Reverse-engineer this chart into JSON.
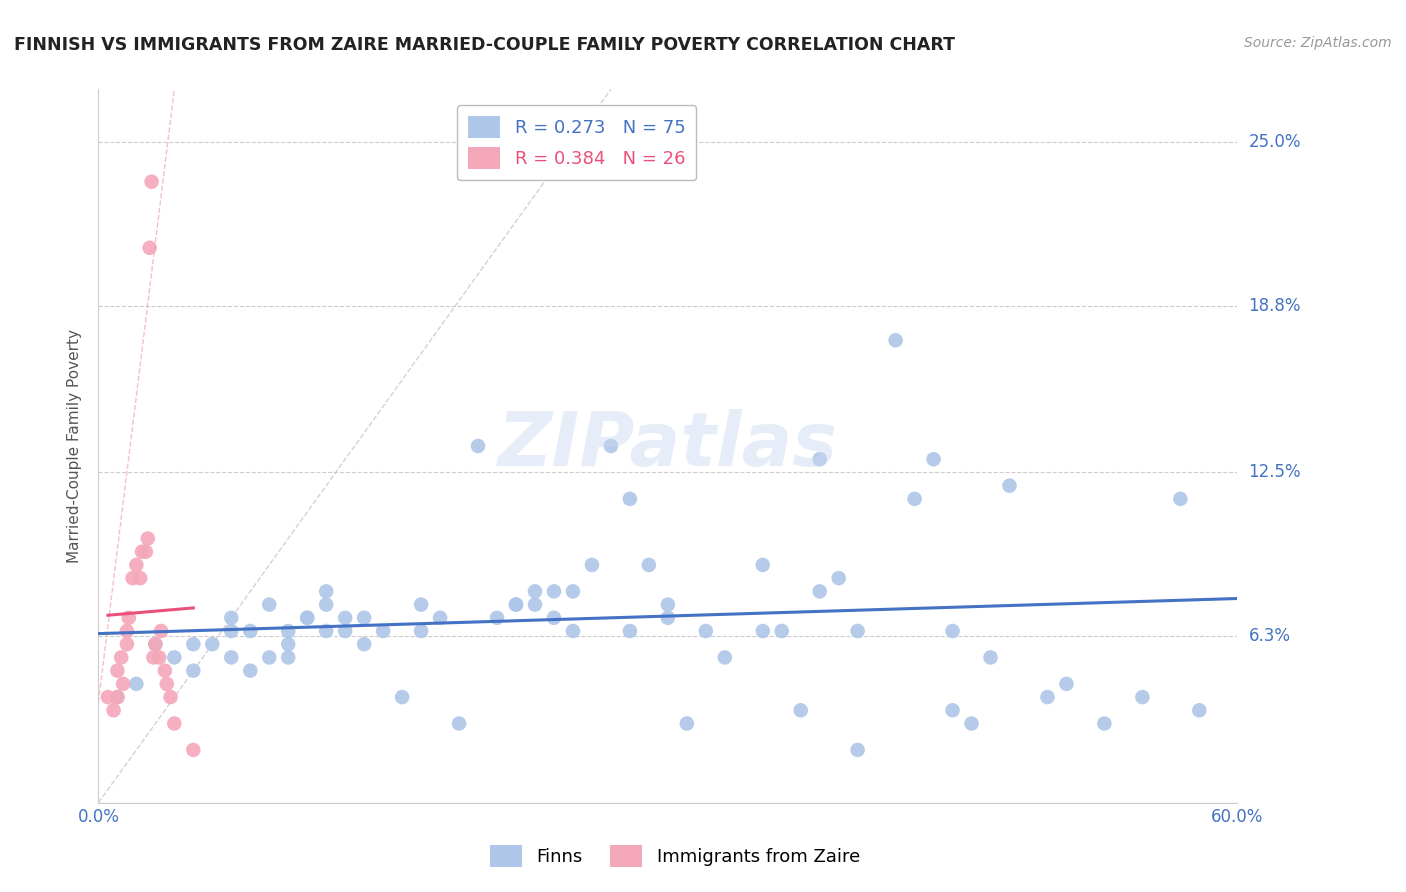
{
  "title": "FINNISH VS IMMIGRANTS FROM ZAIRE MARRIED-COUPLE FAMILY POVERTY CORRELATION CHART",
  "source": "Source: ZipAtlas.com",
  "ylabel": "Married-Couple Family Poverty",
  "xlim": [
    0.0,
    0.6
  ],
  "ylim": [
    0.0,
    0.27
  ],
  "xticks": [
    0.0,
    0.1,
    0.2,
    0.3,
    0.4,
    0.5,
    0.6
  ],
  "xticklabels": [
    "0.0%",
    "",
    "",
    "",
    "",
    "",
    "60.0%"
  ],
  "ytick_positions": [
    0.0,
    0.063,
    0.125,
    0.188,
    0.25
  ],
  "ytick_labels": [
    "",
    "6.3%",
    "12.5%",
    "18.8%",
    "25.0%"
  ],
  "legend_r1": "R = 0.273",
  "legend_n1": "N = 75",
  "legend_r2": "R = 0.384",
  "legend_n2": "N = 26",
  "color_finns": "#aec6e8",
  "color_zaire": "#f4a7b9",
  "color_line_finns": "#4472c4",
  "color_line_zaire": "#e8527a",
  "watermark": "ZIPatlas",
  "finns_x": [
    0.01,
    0.02,
    0.03,
    0.04,
    0.05,
    0.05,
    0.06,
    0.07,
    0.07,
    0.07,
    0.08,
    0.08,
    0.09,
    0.09,
    0.1,
    0.1,
    0.1,
    0.11,
    0.11,
    0.12,
    0.12,
    0.12,
    0.13,
    0.13,
    0.14,
    0.14,
    0.15,
    0.16,
    0.17,
    0.17,
    0.18,
    0.19,
    0.2,
    0.21,
    0.22,
    0.22,
    0.23,
    0.23,
    0.24,
    0.24,
    0.25,
    0.25,
    0.26,
    0.27,
    0.28,
    0.28,
    0.29,
    0.3,
    0.3,
    0.31,
    0.32,
    0.33,
    0.35,
    0.35,
    0.36,
    0.37,
    0.38,
    0.38,
    0.39,
    0.4,
    0.4,
    0.42,
    0.43,
    0.44,
    0.45,
    0.45,
    0.46,
    0.47,
    0.48,
    0.5,
    0.51,
    0.53,
    0.55,
    0.57,
    0.58
  ],
  "finns_y": [
    0.04,
    0.045,
    0.06,
    0.055,
    0.05,
    0.06,
    0.06,
    0.055,
    0.065,
    0.07,
    0.05,
    0.065,
    0.055,
    0.075,
    0.055,
    0.06,
    0.065,
    0.07,
    0.07,
    0.065,
    0.075,
    0.08,
    0.065,
    0.07,
    0.06,
    0.07,
    0.065,
    0.04,
    0.065,
    0.075,
    0.07,
    0.03,
    0.135,
    0.07,
    0.075,
    0.075,
    0.075,
    0.08,
    0.07,
    0.08,
    0.065,
    0.08,
    0.09,
    0.135,
    0.065,
    0.115,
    0.09,
    0.07,
    0.075,
    0.03,
    0.065,
    0.055,
    0.065,
    0.09,
    0.065,
    0.035,
    0.08,
    0.13,
    0.085,
    0.02,
    0.065,
    0.175,
    0.115,
    0.13,
    0.065,
    0.035,
    0.03,
    0.055,
    0.12,
    0.04,
    0.045,
    0.03,
    0.04,
    0.115,
    0.035
  ],
  "zaire_x": [
    0.005,
    0.008,
    0.01,
    0.01,
    0.012,
    0.013,
    0.015,
    0.015,
    0.016,
    0.018,
    0.02,
    0.022,
    0.023,
    0.025,
    0.026,
    0.027,
    0.028,
    0.029,
    0.03,
    0.032,
    0.033,
    0.035,
    0.036,
    0.038,
    0.04,
    0.05
  ],
  "zaire_y": [
    0.04,
    0.035,
    0.04,
    0.05,
    0.055,
    0.045,
    0.06,
    0.065,
    0.07,
    0.085,
    0.09,
    0.085,
    0.095,
    0.095,
    0.1,
    0.21,
    0.235,
    0.055,
    0.06,
    0.055,
    0.065,
    0.05,
    0.045,
    0.04,
    0.03,
    0.02
  ],
  "background_color": "#ffffff",
  "grid_color": "#cccccc"
}
